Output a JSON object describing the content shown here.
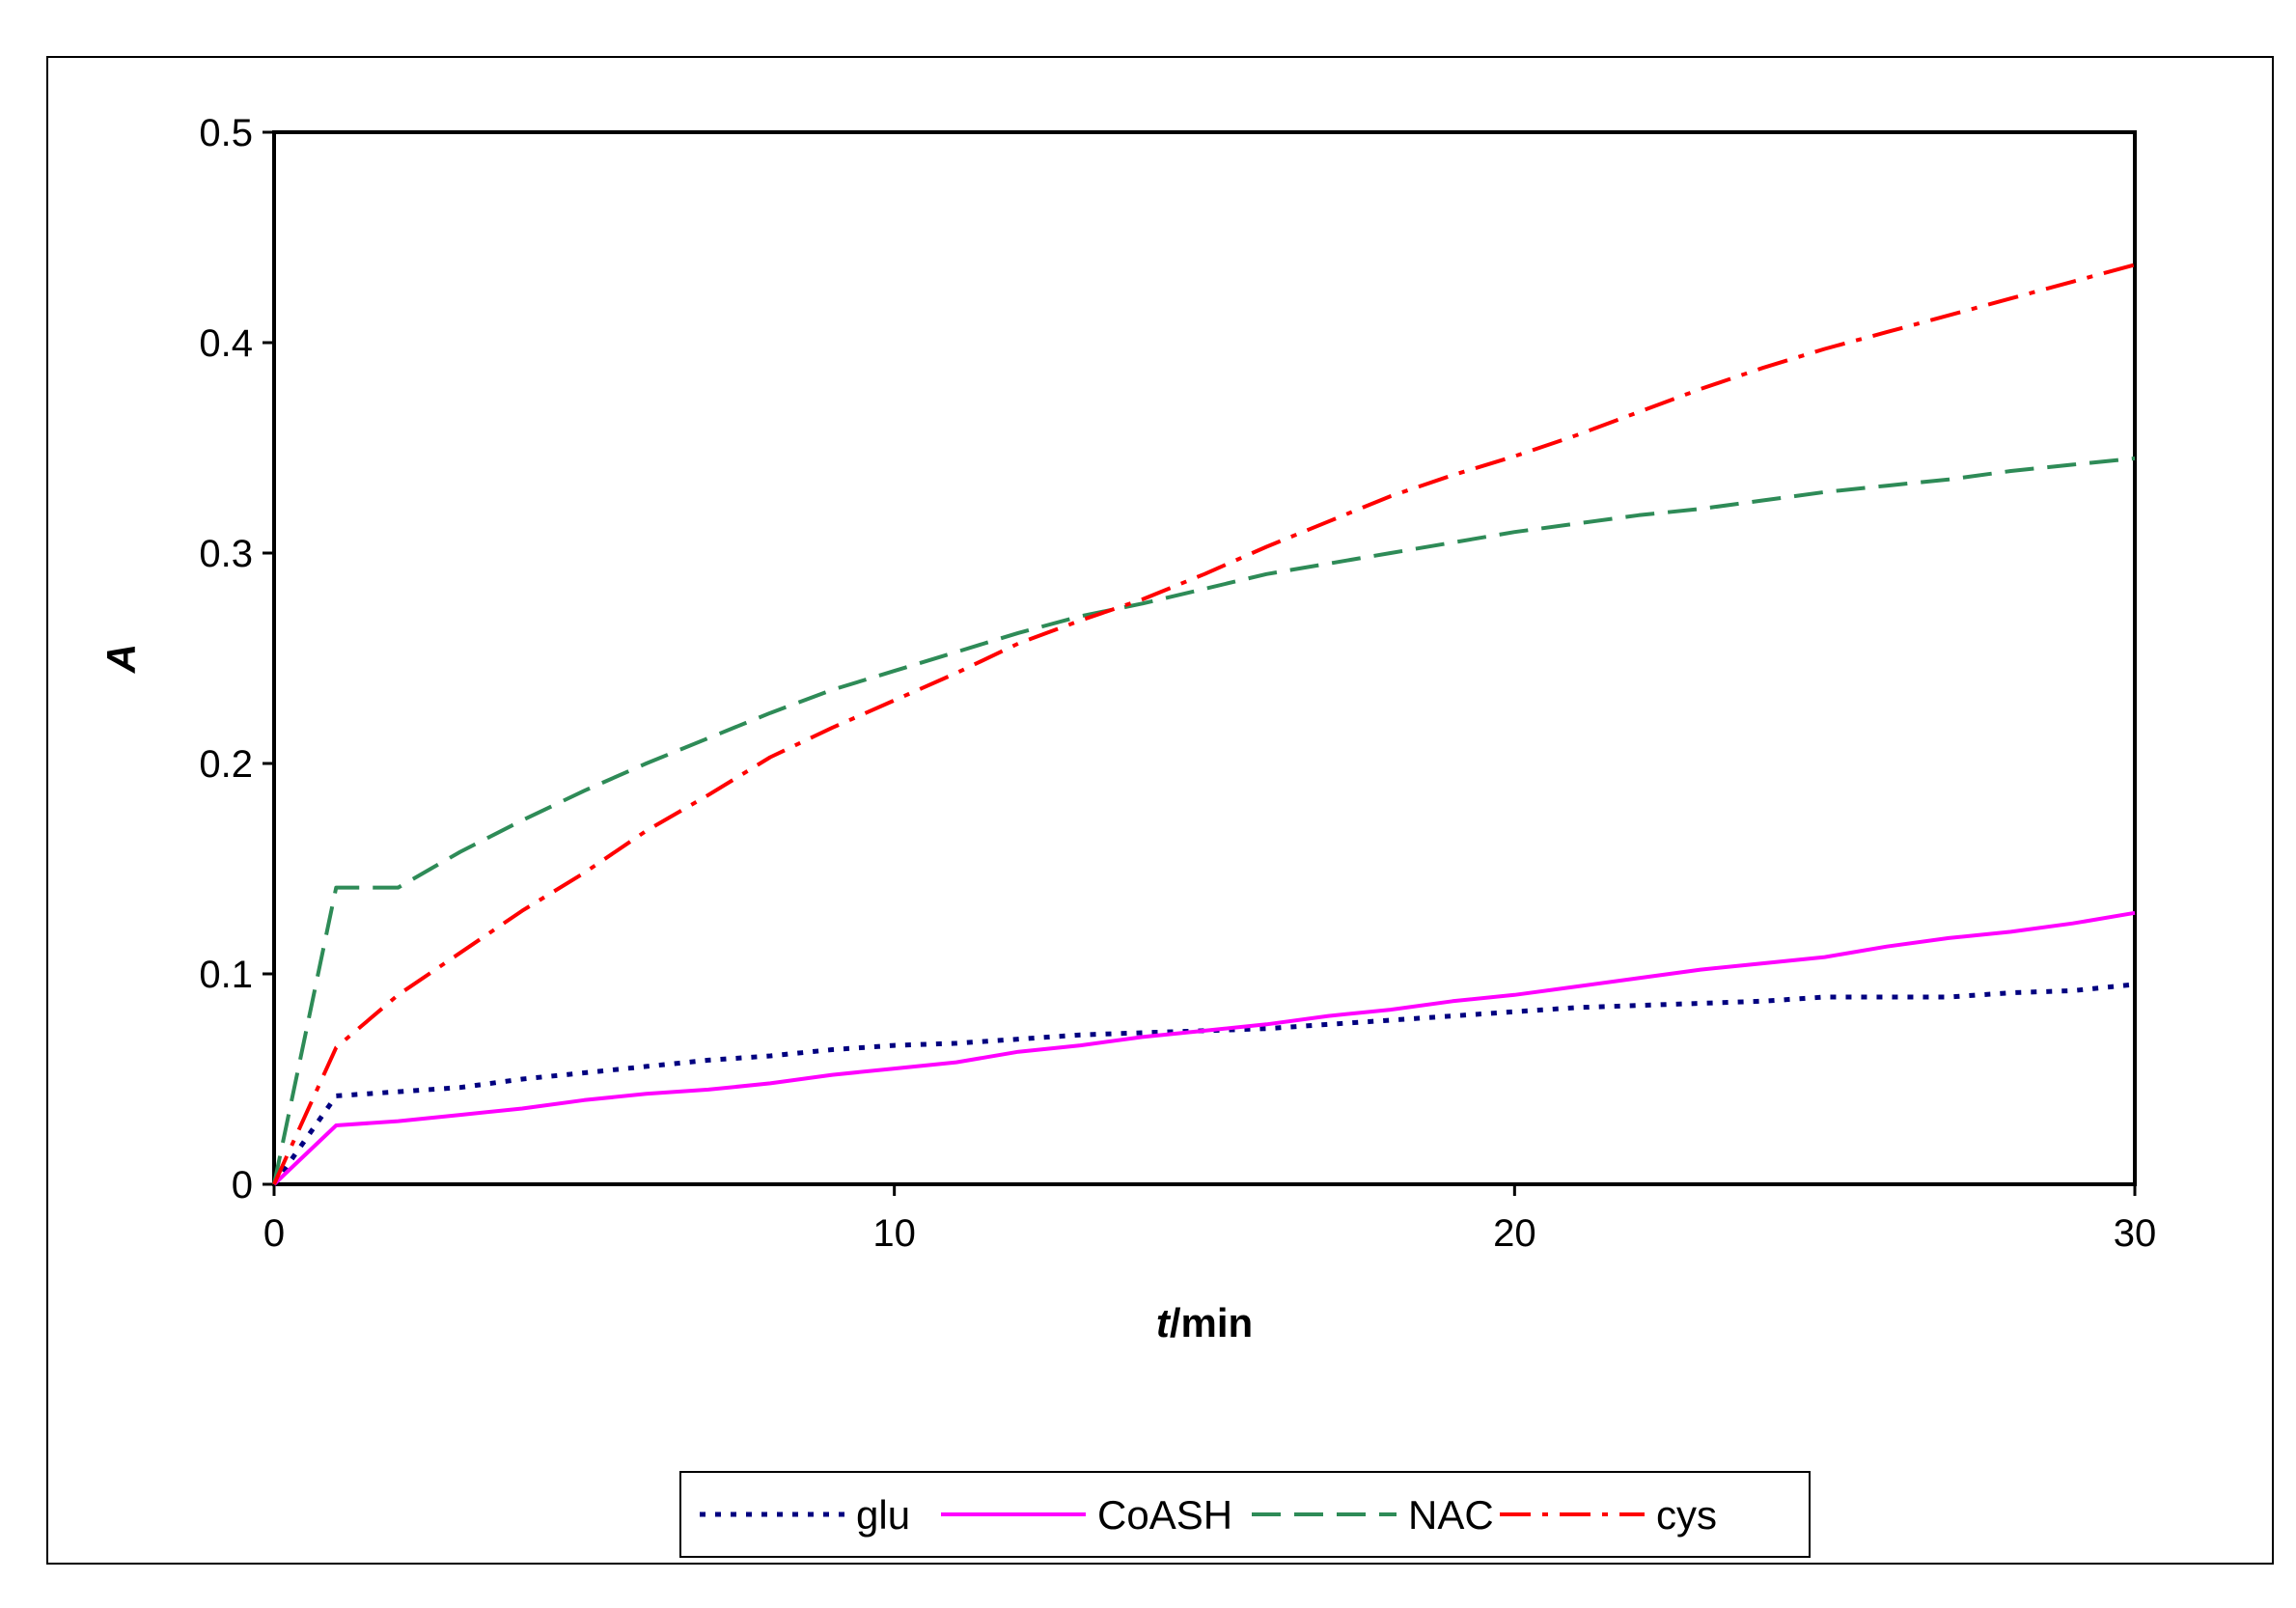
{
  "chart_data": {
    "type": "line",
    "xlabel_italic": "t",
    "xlabel_rest": "/min",
    "ylabel": "A",
    "xlim": [
      0,
      30
    ],
    "ylim": [
      0,
      0.5
    ],
    "xticks": [
      "0",
      "10",
      "20",
      "30"
    ],
    "yticks": [
      "0",
      "0.1",
      "0.2",
      "0.3",
      "0.4",
      "0.5"
    ],
    "grid": false,
    "legend_position": "bottom",
    "series": [
      {
        "name": "glu",
        "color": "#000080",
        "dash": "dotted",
        "x": [
          0,
          1,
          2,
          3,
          4,
          5,
          6,
          7,
          8,
          9,
          10,
          11,
          12,
          13,
          14,
          15,
          16,
          17,
          18,
          19,
          20,
          21,
          22,
          23,
          24,
          25,
          26,
          27,
          28,
          29,
          30
        ],
        "y": [
          0,
          0.042,
          0.044,
          0.046,
          0.05,
          0.053,
          0.056,
          0.059,
          0.061,
          0.064,
          0.066,
          0.067,
          0.069,
          0.071,
          0.072,
          0.073,
          0.074,
          0.076,
          0.078,
          0.08,
          0.082,
          0.084,
          0.085,
          0.086,
          0.087,
          0.089,
          0.089,
          0.089,
          0.091,
          0.092,
          0.095
        ]
      },
      {
        "name": "CoASH",
        "color": "#ff00ff",
        "dash": "solid",
        "x": [
          0,
          1,
          2,
          3,
          4,
          5,
          6,
          7,
          8,
          9,
          10,
          11,
          12,
          13,
          14,
          15,
          16,
          17,
          18,
          19,
          20,
          21,
          22,
          23,
          24,
          25,
          26,
          27,
          28,
          29,
          30
        ],
        "y": [
          0,
          0.028,
          0.03,
          0.033,
          0.036,
          0.04,
          0.043,
          0.045,
          0.048,
          0.052,
          0.055,
          0.058,
          0.063,
          0.066,
          0.07,
          0.073,
          0.076,
          0.08,
          0.083,
          0.087,
          0.09,
          0.094,
          0.098,
          0.102,
          0.105,
          0.108,
          0.113,
          0.117,
          0.12,
          0.124,
          0.129
        ]
      },
      {
        "name": "NAC",
        "color": "#2e8b57",
        "dash": "dashed",
        "x": [
          0,
          1,
          2,
          3,
          4,
          5,
          6,
          7,
          8,
          9,
          10,
          11,
          12,
          13,
          14,
          15,
          16,
          17,
          18,
          19,
          20,
          21,
          22,
          23,
          24,
          25,
          26,
          27,
          28,
          29,
          30
        ],
        "y": [
          0,
          0.141,
          0.141,
          0.158,
          0.173,
          0.187,
          0.2,
          0.212,
          0.224,
          0.235,
          0.244,
          0.253,
          0.262,
          0.27,
          0.276,
          0.283,
          0.29,
          0.295,
          0.3,
          0.305,
          0.31,
          0.314,
          0.318,
          0.321,
          0.325,
          0.329,
          0.332,
          0.335,
          0.339,
          0.342,
          0.345
        ]
      },
      {
        "name": "cys",
        "color": "#ff0000",
        "dash": "dashdot",
        "x": [
          0,
          1,
          2,
          3,
          4,
          5,
          6,
          7,
          8,
          9,
          10,
          11,
          12,
          13,
          14,
          15,
          16,
          17,
          18,
          19,
          20,
          21,
          22,
          23,
          24,
          25,
          26,
          27,
          28,
          29,
          30
        ],
        "y": [
          0,
          0.065,
          0.09,
          0.11,
          0.13,
          0.148,
          0.168,
          0.185,
          0.203,
          0.217,
          0.23,
          0.243,
          0.257,
          0.268,
          0.278,
          0.29,
          0.303,
          0.315,
          0.327,
          0.337,
          0.346,
          0.356,
          0.367,
          0.378,
          0.388,
          0.397,
          0.405,
          0.413,
          0.421,
          0.429,
          0.437
        ]
      }
    ]
  }
}
